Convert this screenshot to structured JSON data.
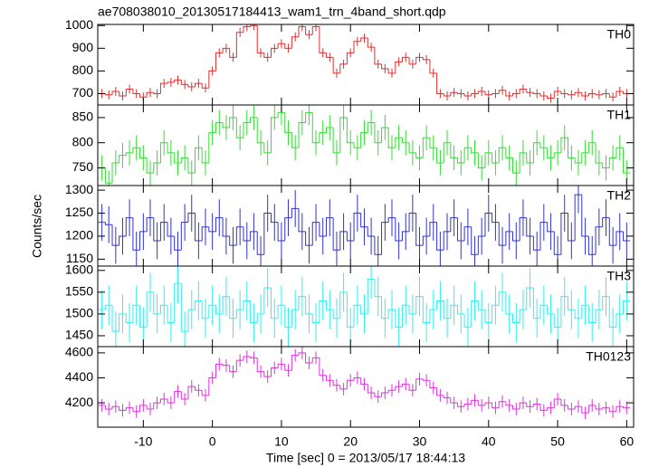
{
  "chart_data": [
    {
      "type": "step",
      "title": "ae708038010_20130517184413_wam1_trn_4band_short.qdp",
      "label": "TH0",
      "color": "#e03030",
      "error": 20,
      "xlim": [
        -16.6,
        61
      ],
      "ylim": [
        650,
        1005
      ],
      "yticks": [
        700,
        800,
        900,
        1000
      ],
      "x": [
        -16,
        -15,
        -14,
        -13,
        -12,
        -11,
        -10,
        -9,
        -8,
        -7,
        -6,
        -5,
        -4,
        -3,
        -2,
        -1,
        0,
        1,
        2,
        3,
        4,
        5,
        6,
        7,
        8,
        9,
        10,
        11,
        12,
        13,
        14,
        15,
        16,
        17,
        18,
        19,
        20,
        21,
        22,
        23,
        24,
        25,
        26,
        27,
        28,
        29,
        30,
        31,
        32,
        33,
        34,
        35,
        36,
        37,
        38,
        39,
        40,
        41,
        42,
        43,
        44,
        45,
        46,
        47,
        48,
        49,
        50,
        51,
        52,
        53,
        54,
        55,
        56,
        57,
        58,
        59,
        60
      ],
      "values": [
        700,
        695,
        710,
        690,
        720,
        700,
        685,
        705,
        700,
        745,
        750,
        760,
        740,
        730,
        745,
        725,
        800,
        880,
        900,
        860,
        970,
        995,
        1000,
        880,
        860,
        900,
        920,
        900,
        950,
        995,
        960,
        995,
        880,
        860,
        790,
        830,
        880,
        930,
        945,
        905,
        830,
        810,
        790,
        840,
        860,
        830,
        860,
        850,
        790,
        700,
        690,
        705,
        700,
        690,
        700,
        710,
        695,
        700,
        715,
        690,
        700,
        720,
        705,
        700,
        690,
        680,
        710,
        700,
        695,
        705,
        690,
        700,
        695,
        700,
        685,
        710,
        700
      ]
    },
    {
      "type": "step",
      "label": "TH1",
      "color": "#33dd33",
      "error": 25,
      "xlim": [
        -16.6,
        61
      ],
      "ylim": [
        715,
        875
      ],
      "yticks": [
        750,
        800,
        850
      ],
      "x": [
        -16,
        -15,
        -14,
        -13,
        -12,
        -11,
        -10,
        -9,
        -8,
        -7,
        -6,
        -5,
        -4,
        -3,
        -2,
        -1,
        0,
        1,
        2,
        3,
        4,
        5,
        6,
        7,
        8,
        9,
        10,
        11,
        12,
        13,
        14,
        15,
        16,
        17,
        18,
        19,
        20,
        21,
        22,
        23,
        24,
        25,
        26,
        27,
        28,
        29,
        30,
        31,
        32,
        33,
        34,
        35,
        36,
        37,
        38,
        39,
        40,
        41,
        42,
        43,
        44,
        45,
        46,
        47,
        48,
        49,
        50,
        51,
        52,
        53,
        54,
        55,
        56,
        57,
        58,
        59,
        60
      ],
      "values": [
        750,
        720,
        760,
        775,
        780,
        790,
        770,
        740,
        760,
        800,
        780,
        760,
        770,
        740,
        790,
        760,
        820,
        840,
        830,
        850,
        810,
        840,
        850,
        800,
        780,
        850,
        860,
        820,
        790,
        840,
        860,
        800,
        820,
        830,
        780,
        850,
        800,
        790,
        820,
        840,
        800,
        830,
        790,
        810,
        800,
        780,
        770,
        810,
        790,
        760,
        800,
        770,
        760,
        790,
        780,
        750,
        780,
        760,
        790,
        770,
        740,
        780,
        760,
        800,
        790,
        770,
        780,
        810,
        770,
        760,
        780,
        800,
        760,
        750,
        770,
        790,
        740
      ]
    },
    {
      "type": "step",
      "label": "TH2",
      "y_label": "Counts/sec",
      "color": "#3333cc",
      "error": 40,
      "xlim": [
        -16.6,
        61
      ],
      "ylim": [
        1135,
        1310
      ],
      "yticks": [
        1150,
        1200,
        1250,
        1300
      ],
      "x": [
        -16,
        -15,
        -14,
        -13,
        -12,
        -11,
        -10,
        -9,
        -8,
        -7,
        -6,
        -5,
        -4,
        -3,
        -2,
        -1,
        0,
        1,
        2,
        3,
        4,
        5,
        6,
        7,
        8,
        9,
        10,
        11,
        12,
        13,
        14,
        15,
        16,
        17,
        18,
        19,
        20,
        21,
        22,
        23,
        24,
        25,
        26,
        27,
        28,
        29,
        30,
        31,
        32,
        33,
        34,
        35,
        36,
        37,
        38,
        39,
        40,
        41,
        42,
        43,
        44,
        45,
        46,
        47,
        48,
        49,
        50,
        51,
        52,
        53,
        54,
        55,
        56,
        57,
        58,
        59,
        60
      ],
      "values": [
        1230,
        1225,
        1180,
        1200,
        1240,
        1170,
        1210,
        1240,
        1190,
        1230,
        1200,
        1170,
        1230,
        1250,
        1190,
        1220,
        1210,
        1240,
        1200,
        1180,
        1220,
        1190,
        1210,
        1160,
        1250,
        1230,
        1190,
        1240,
        1260,
        1210,
        1180,
        1230,
        1200,
        1240,
        1170,
        1210,
        1190,
        1250,
        1220,
        1200,
        1160,
        1230,
        1240,
        1190,
        1210,
        1250,
        1180,
        1200,
        1230,
        1170,
        1210,
        1240,
        1190,
        1220,
        1160,
        1200,
        1250,
        1230,
        1180,
        1210,
        1190,
        1240,
        1200,
        1170,
        1230,
        1210,
        1160,
        1250,
        1190,
        1290,
        1200,
        1160,
        1220,
        1240,
        1180,
        1210,
        1190
      ]
    },
    {
      "type": "step",
      "label": "TH3",
      "color": "#33eeee",
      "error": 45,
      "xlim": [
        -16.6,
        61
      ],
      "ylim": [
        1425,
        1610
      ],
      "yticks": [
        1450,
        1500,
        1550,
        1600
      ],
      "x": [
        -16,
        -15,
        -14,
        -13,
        -12,
        -11,
        -10,
        -9,
        -8,
        -7,
        -6,
        -5,
        -4,
        -3,
        -2,
        -1,
        0,
        1,
        2,
        3,
        4,
        5,
        6,
        7,
        8,
        9,
        10,
        11,
        12,
        13,
        14,
        15,
        16,
        17,
        18,
        19,
        20,
        21,
        22,
        23,
        24,
        25,
        26,
        27,
        28,
        29,
        30,
        31,
        32,
        33,
        34,
        35,
        36,
        37,
        38,
        39,
        40,
        41,
        42,
        43,
        44,
        45,
        46,
        47,
        48,
        49,
        50,
        51,
        52,
        53,
        54,
        55,
        56,
        57,
        58,
        59,
        60
      ],
      "values": [
        1510,
        1520,
        1460,
        1500,
        1480,
        1520,
        1470,
        1550,
        1500,
        1520,
        1480,
        1570,
        1460,
        1510,
        1530,
        1490,
        1520,
        1500,
        1540,
        1490,
        1510,
        1530,
        1480,
        1500,
        1560,
        1490,
        1520,
        1470,
        1510,
        1540,
        1500,
        1480,
        1530,
        1510,
        1490,
        1550,
        1470,
        1520,
        1500,
        1580,
        1540,
        1490,
        1510,
        1470,
        1520,
        1500,
        1540,
        1480,
        1510,
        1530,
        1490,
        1520,
        1500,
        1470,
        1530,
        1510,
        1480,
        1520,
        1550,
        1500,
        1480,
        1510,
        1560,
        1490,
        1520,
        1500,
        1470,
        1540,
        1510,
        1490,
        1520,
        1480,
        1510,
        1540,
        1470,
        1500,
        1530
      ]
    },
    {
      "type": "step",
      "label": "TH0123",
      "x_label": "Time [sec] 0 = 2013/05/17 18:44:13",
      "color": "#dd33dd",
      "error": 50,
      "xlim": [
        -16.6,
        61
      ],
      "xticks": [
        -10,
        0,
        10,
        20,
        30,
        40,
        50,
        60
      ],
      "ylim": [
        4005,
        4650
      ],
      "yticks": [
        4200,
        4400,
        4600
      ],
      "x": [
        -16,
        -15,
        -14,
        -13,
        -12,
        -11,
        -10,
        -9,
        -8,
        -7,
        -6,
        -5,
        -4,
        -3,
        -2,
        -1,
        0,
        1,
        2,
        3,
        4,
        5,
        6,
        7,
        8,
        9,
        10,
        11,
        12,
        13,
        14,
        15,
        16,
        17,
        18,
        19,
        20,
        21,
        22,
        23,
        24,
        25,
        26,
        27,
        28,
        29,
        30,
        31,
        32,
        33,
        34,
        35,
        36,
        37,
        38,
        39,
        40,
        41,
        42,
        43,
        44,
        45,
        46,
        47,
        48,
        49,
        50,
        51,
        52,
        53,
        54,
        55,
        56,
        57,
        58,
        59,
        60
      ],
      "values": [
        4180,
        4150,
        4170,
        4140,
        4160,
        4130,
        4180,
        4150,
        4200,
        4230,
        4200,
        4290,
        4230,
        4330,
        4300,
        4260,
        4400,
        4510,
        4500,
        4450,
        4540,
        4570,
        4560,
        4450,
        4410,
        4480,
        4510,
        4460,
        4580,
        4600,
        4520,
        4560,
        4420,
        4380,
        4340,
        4310,
        4380,
        4400,
        4350,
        4280,
        4250,
        4280,
        4300,
        4330,
        4350,
        4300,
        4390,
        4380,
        4320,
        4260,
        4240,
        4200,
        4170,
        4190,
        4220,
        4180,
        4200,
        4160,
        4210,
        4180,
        4150,
        4200,
        4170,
        4190,
        4140,
        4160,
        4230,
        4180,
        4150,
        4170,
        4120,
        4180,
        4150,
        4160,
        4130,
        4170,
        4160
      ]
    }
  ]
}
